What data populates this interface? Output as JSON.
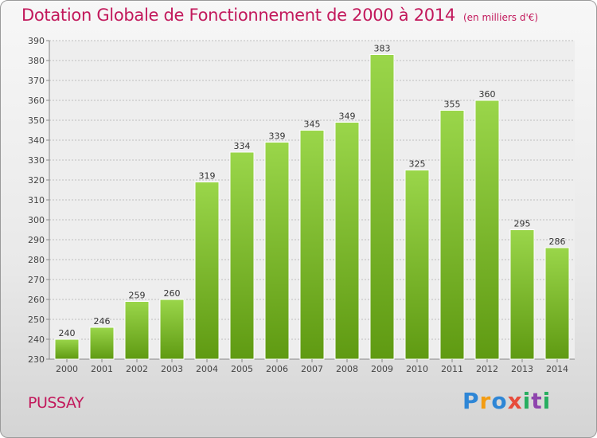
{
  "chart_data": {
    "type": "bar",
    "title": "Dotation Globale de Fonctionnement de 2000 à 2014",
    "subtitle": "(en milliers d'€)",
    "categories": [
      "2000",
      "2001",
      "2002",
      "2003",
      "2004",
      "2005",
      "2006",
      "2007",
      "2008",
      "2009",
      "2010",
      "2011",
      "2012",
      "2013",
      "2014"
    ],
    "values": [
      240,
      246,
      259,
      260,
      319,
      334,
      339,
      345,
      349,
      383,
      325,
      355,
      360,
      295,
      286
    ],
    "ylim": [
      230,
      390
    ],
    "ytick_step": 10,
    "xlabel": "",
    "ylabel": "",
    "grid": true,
    "bar_color": "#7cb82f"
  },
  "footer": {
    "commune": "PUSSAY",
    "logo_text": "Proxiti"
  }
}
